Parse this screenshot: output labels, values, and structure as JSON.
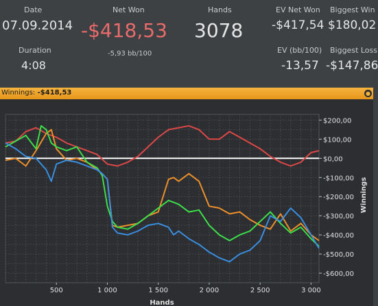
{
  "stats": {
    "date_label": "Date",
    "date_value": "07.09.2014",
    "duration_label": "Duration",
    "duration_value": "4:08",
    "net_won_label": "Net Won",
    "net_won_value": "-$418,53",
    "bb_per_100": "-5,93 bb/100",
    "hands_label": "Hands",
    "hands_value": "3078",
    "ev_net_won_label": "EV Net Won",
    "ev_net_won_value": "-$417,54",
    "ev_bb_label": "EV (bb/100)",
    "ev_bb_value": "-13,57",
    "biggest_win_label": "Biggest Win",
    "biggest_win_value": "$180,02",
    "biggest_loss_label": "Biggest Loss",
    "biggest_loss_value": "-$147,86"
  },
  "bar": {
    "title": "Winnings:",
    "value": "-$418,53",
    "pin_icon": "pin-icon"
  },
  "colors": {
    "red": "#e04848",
    "orange": "#f0902a",
    "green": "#3ee04a",
    "blue": "#3a8ee0",
    "zero_line": "#ffffff"
  },
  "chart_data": {
    "type": "line",
    "xlabel": "Hands",
    "ylabel": "Winnings",
    "xlim": [
      0,
      3078
    ],
    "ylim": [
      -650,
      230
    ],
    "x_ticks": [
      {
        "v": 500,
        "label": "500"
      },
      {
        "v": 1000,
        "label": "1 000"
      },
      {
        "v": 1500,
        "label": "1 500"
      },
      {
        "v": 2000,
        "label": "2 000"
      },
      {
        "v": 2500,
        "label": "2 500"
      },
      {
        "v": 3000,
        "label": "3 000"
      }
    ],
    "y_ticks": [
      {
        "v": 200,
        "label": "$200,00"
      },
      {
        "v": 100,
        "label": "$100,00"
      },
      {
        "v": 0,
        "label": "$0,00"
      },
      {
        "v": -100,
        "label": "-$100,00"
      },
      {
        "v": -200,
        "label": "-$200,00"
      },
      {
        "v": -300,
        "label": "-$300,00"
      },
      {
        "v": -400,
        "label": "-$400,00"
      },
      {
        "v": -500,
        "label": "-$500,00"
      },
      {
        "v": -600,
        "label": "-$600,00"
      }
    ],
    "series": [
      {
        "key": "red",
        "color": "#e04848",
        "x": [
          0,
          100,
          200,
          300,
          400,
          500,
          600,
          700,
          800,
          900,
          1000,
          1100,
          1200,
          1300,
          1400,
          1500,
          1600,
          1700,
          1800,
          1900,
          2000,
          2100,
          2200,
          2300,
          2400,
          2500,
          2600,
          2700,
          2800,
          2900,
          3000,
          3078
        ],
        "y": [
          80,
          90,
          140,
          160,
          130,
          110,
          80,
          60,
          40,
          20,
          -30,
          -40,
          -20,
          10,
          60,
          110,
          150,
          160,
          170,
          150,
          100,
          100,
          140,
          110,
          80,
          50,
          10,
          -20,
          -40,
          -20,
          30,
          40
        ]
      },
      {
        "key": "orange",
        "color": "#f0902a",
        "x": [
          0,
          100,
          200,
          300,
          400,
          450,
          500,
          600,
          700,
          800,
          900,
          950,
          1000,
          1050,
          1100,
          1200,
          1300,
          1400,
          1500,
          1600,
          1650,
          1700,
          1800,
          1900,
          2000,
          2100,
          2200,
          2300,
          2400,
          2500,
          2600,
          2700,
          2800,
          2900,
          3000,
          3078
        ],
        "y": [
          -10,
          0,
          -40,
          40,
          130,
          150,
          50,
          -10,
          0,
          -20,
          -60,
          -80,
          -110,
          -350,
          -360,
          -350,
          -340,
          -300,
          -280,
          -110,
          -100,
          -120,
          -80,
          -120,
          -250,
          -260,
          -290,
          -280,
          -320,
          -350,
          -370,
          -290,
          -380,
          -340,
          -400,
          -430
        ]
      },
      {
        "key": "green",
        "color": "#3ee04a",
        "x": [
          0,
          100,
          200,
          300,
          350,
          400,
          450,
          500,
          600,
          700,
          800,
          900,
          950,
          1000,
          1050,
          1100,
          1200,
          1300,
          1400,
          1500,
          1600,
          1700,
          1800,
          1900,
          2000,
          2100,
          2200,
          2300,
          2400,
          2500,
          2600,
          2700,
          2800,
          2900,
          3000,
          3078
        ],
        "y": [
          60,
          90,
          120,
          50,
          170,
          150,
          80,
          60,
          40,
          60,
          -20,
          -50,
          -90,
          -250,
          -330,
          -360,
          -370,
          -340,
          -300,
          -260,
          -220,
          -240,
          -280,
          -270,
          -350,
          -400,
          -430,
          -400,
          -380,
          -330,
          -280,
          -340,
          -390,
          -360,
          -420,
          -460
        ]
      },
      {
        "key": "blue",
        "color": "#3a8ee0",
        "x": [
          0,
          100,
          200,
          300,
          400,
          450,
          500,
          600,
          700,
          800,
          900,
          950,
          1000,
          1050,
          1100,
          1200,
          1300,
          1400,
          1500,
          1600,
          1650,
          1700,
          1800,
          1900,
          2000,
          2100,
          2200,
          2300,
          2400,
          2500,
          2600,
          2700,
          2800,
          2900,
          3000,
          3078
        ],
        "y": [
          80,
          50,
          10,
          0,
          -60,
          -120,
          -30,
          -10,
          -20,
          -40,
          -60,
          -80,
          -110,
          -360,
          -390,
          -400,
          -380,
          -350,
          -340,
          -360,
          -400,
          -380,
          -420,
          -450,
          -490,
          -520,
          -540,
          -500,
          -480,
          -430,
          -300,
          -330,
          -260,
          -310,
          -400,
          -470
        ]
      }
    ]
  }
}
